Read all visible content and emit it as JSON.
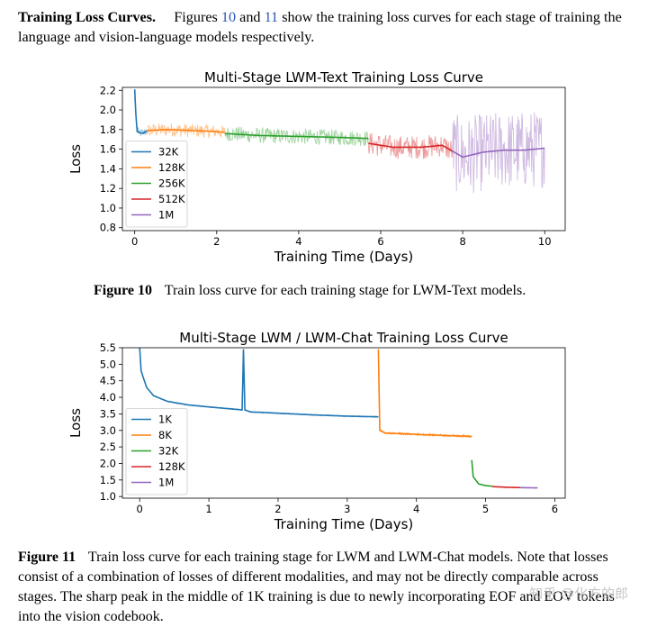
{
  "intro": {
    "heading": "Training Loss Curves.",
    "text_before": "Figures",
    "ref1": "10",
    "and": "and",
    "ref2": "11",
    "text_after": "show the training loss curves for each stage of training the language and vision-language models respectively."
  },
  "captions": [
    {
      "label": "Figure 10",
      "text": "Train loss curve for each training stage for LWM-Text models."
    },
    {
      "label": "Figure 11",
      "text": "Train loss curve for each training stage for LWM and LWM-Chat models. Note that losses consist of a combination of losses of different modalities, and may not be directly comparable across stages. The sharp peak in the middle of 1K training is due to newly incorporating EOF and EOV tokens into the vision codebook."
    }
  ],
  "watermark": "知乎 @化方的郎",
  "chart_data": [
    {
      "type": "line",
      "title": "Multi-Stage LWM-Text Training Loss Curve",
      "xlabel": "Training Time (Days)",
      "ylabel": "Loss",
      "xlim": [
        -0.3,
        10.5
      ],
      "ylim": [
        0.77,
        2.23
      ],
      "xticks": [
        0,
        2,
        4,
        6,
        8,
        10
      ],
      "yticks": [
        0.8,
        1.0,
        1.2,
        1.4,
        1.6,
        1.8,
        2.0,
        2.2
      ],
      "legend_position": "bottom-left",
      "grid": false,
      "series": [
        {
          "name": "32K",
          "color": "#1f77b4",
          "points": [
            [
              0.0,
              2.21
            ],
            [
              0.03,
              1.95
            ],
            [
              0.06,
              1.78
            ],
            [
              0.1,
              1.77
            ],
            [
              0.2,
              1.76
            ],
            [
              0.3,
              1.79
            ]
          ],
          "noise": 0.05
        },
        {
          "name": "128K",
          "color": "#ff7f0e",
          "points": [
            [
              0.3,
              1.79
            ],
            [
              0.8,
              1.8
            ],
            [
              1.4,
              1.79
            ],
            [
              2.0,
              1.78
            ],
            [
              2.2,
              1.77
            ]
          ],
          "noise": 0.07
        },
        {
          "name": "256K",
          "color": "#2ca02c",
          "points": [
            [
              2.2,
              1.76
            ],
            [
              3.0,
              1.74
            ],
            [
              4.0,
              1.73
            ],
            [
              5.0,
              1.72
            ],
            [
              5.7,
              1.71
            ]
          ],
          "noise": 0.08
        },
        {
          "name": "512K",
          "color": "#d62728",
          "points": [
            [
              5.7,
              1.66
            ],
            [
              6.3,
              1.62
            ],
            [
              7.0,
              1.62
            ],
            [
              7.5,
              1.64
            ],
            [
              7.75,
              1.58
            ]
          ],
          "noise": 0.12
        },
        {
          "name": "1M",
          "color": "#9467bd",
          "points": [
            [
              7.75,
              1.58
            ],
            [
              8.0,
              1.52
            ],
            [
              8.5,
              1.57
            ],
            [
              9.0,
              1.59
            ],
            [
              9.5,
              1.59
            ],
            [
              10.0,
              1.61
            ]
          ],
          "noise": 0.4
        }
      ]
    },
    {
      "type": "line",
      "title": "Multi-Stage LWM / LWM-Chat Training Loss Curve",
      "xlabel": "Training Time (Days)",
      "ylabel": "Loss",
      "xlim": [
        -0.25,
        6.15
      ],
      "ylim": [
        0.95,
        5.5
      ],
      "xticks": [
        0,
        1,
        2,
        3,
        4,
        5,
        6
      ],
      "yticks": [
        1.0,
        1.5,
        2.0,
        2.5,
        3.0,
        3.5,
        4.0,
        4.5,
        5.0,
        5.5
      ],
      "legend_position": "bottom-left",
      "grid": false,
      "series": [
        {
          "name": "1K",
          "color": "#1f77b4",
          "points": [
            [
              0.0,
              5.5
            ],
            [
              0.02,
              4.8
            ],
            [
              0.1,
              4.3
            ],
            [
              0.2,
              4.05
            ],
            [
              0.4,
              3.88
            ],
            [
              0.7,
              3.77
            ],
            [
              1.0,
              3.71
            ],
            [
              1.48,
              3.62
            ],
            [
              1.5,
              5.45
            ],
            [
              1.52,
              3.62
            ],
            [
              1.6,
              3.56
            ],
            [
              2.0,
              3.52
            ],
            [
              2.5,
              3.47
            ],
            [
              3.0,
              3.43
            ],
            [
              3.45,
              3.41
            ]
          ],
          "noise": 0.015
        },
        {
          "name": "8K",
          "color": "#ff7f0e",
          "points": [
            [
              3.45,
              5.45
            ],
            [
              3.47,
              3.0
            ],
            [
              3.55,
              2.92
            ],
            [
              4.0,
              2.88
            ],
            [
              4.5,
              2.84
            ],
            [
              4.8,
              2.82
            ]
          ],
          "noise": 0.03
        },
        {
          "name": "32K",
          "color": "#2ca02c",
          "points": [
            [
              4.8,
              2.1
            ],
            [
              4.82,
              1.6
            ],
            [
              4.9,
              1.38
            ],
            [
              5.0,
              1.33
            ],
            [
              5.1,
              1.31
            ]
          ],
          "noise": 0.01
        },
        {
          "name": "128K",
          "color": "#d62728",
          "points": [
            [
              5.1,
              1.3
            ],
            [
              5.3,
              1.28
            ],
            [
              5.5,
              1.27
            ]
          ],
          "noise": 0.008
        },
        {
          "name": "1M",
          "color": "#9467bd",
          "points": [
            [
              5.5,
              1.27
            ],
            [
              5.75,
              1.26
            ]
          ],
          "noise": 0.006
        }
      ]
    }
  ]
}
